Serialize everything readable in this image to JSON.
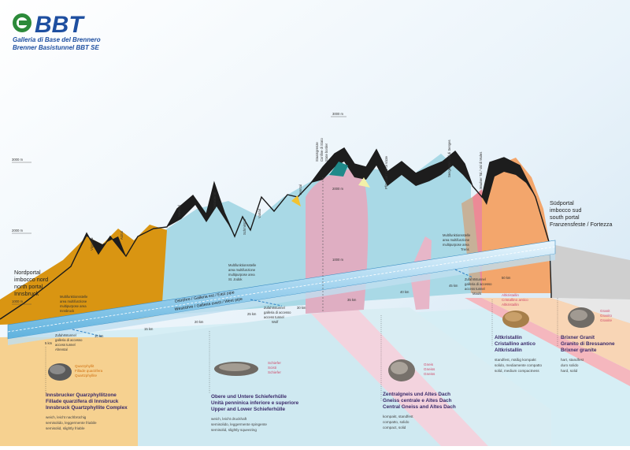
{
  "logo": {
    "brand": "BBT",
    "line1": "Galleria di Base del Brennero",
    "line2": "Brenner Basistunnel BBT SE"
  },
  "elevations": {
    "e1000": "1000 m",
    "e2000": "2000 m",
    "e3000": "3000 m",
    "e3000b": "3000 m",
    "e2000b": "2000 m",
    "e1000b": "1000 m"
  },
  "peaks": {
    "viggartal": "Viggartal",
    "arztal": "Arztal",
    "navistal": "Navistal",
    "padastertal": "Padastertal",
    "schmirntal": "Schmirntal",
    "valsertal": "Valstal",
    "venntal": "Venntal",
    "staatsgrenze": [
      "Staatsgrenze",
      "Confine di Stato",
      "State border"
    ],
    "pfitschtal": "Pfitschtal / Val di Vizze",
    "sengestal": "Sengestal / Val di Senges",
    "maulser": "Maulser Tal / Val di Mules"
  },
  "portals": {
    "north": [
      "Nordportal",
      "imbocco nord",
      "north portal",
      "Innsbruck"
    ],
    "south": [
      "Südportal",
      "imbocco sud",
      "south portal",
      "Franzensfeste / Fortezza"
    ]
  },
  "kilometers": [
    "5 km",
    "10 km",
    "15 km",
    "20 km",
    "25 km",
    "30 km",
    "35 km",
    "40 km",
    "45 km",
    "50 km"
  ],
  "tunnel_labels": {
    "east": "Oströhre / Galleria est / East pipe",
    "west": "Weströhre / Galleria ovest / West pipe"
  },
  "callouts": {
    "mfa_innsbruck": [
      "Multifunktionsstelle",
      "area multifunzione",
      "multipurpose area",
      "Innsbruck"
    ],
    "zugang_ahrental": [
      "Zufahrtstunnel",
      "galleria di accesso",
      "access tunnel",
      "Ahrental"
    ],
    "mfa_stjodok": [
      "Multifunktionsstelle",
      "area multifunzione",
      "multipurpose area",
      "St. Jodok"
    ],
    "zugang_wolf": [
      "Zufahrtstunnel",
      "galleria di accesso",
      "access tunnel",
      "Wolf"
    ],
    "mfa_trens": [
      "Multifunktionsstelle",
      "area multifunzione",
      "multipurpose area",
      "Trens"
    ],
    "zugang_mauls": [
      "Zufahrtstunnel",
      "galleria di accesso",
      "access tunnel",
      "Mauls"
    ]
  },
  "rocks": [
    {
      "sample": [
        "Quarzphyllit",
        "Fillade quarzifera",
        "Quartzphyllite"
      ],
      "title": [
        "Innsbrucker Quarzphyllitzone",
        "Fillade quarzifera di Innsbruck",
        "Innsbruck Quartzphyllite Complex"
      ],
      "props": [
        "weich, leicht nachbrüchig",
        "semisolido, leggermente friabile",
        "semisolid, slightly friable"
      ],
      "color": "#d9940f"
    },
    {
      "sample": [
        "Schiefer",
        "Scisti",
        "Schiefer"
      ],
      "title": [
        "Obere und Untere Schieferhülle",
        "Unità penninica inferiore e superiore",
        "Upper and Lower Schieferhülle"
      ],
      "props": [
        "weich, leicht druckhaft",
        "semisolido, leggermente spingente",
        "semisolid, slightly squeezing"
      ],
      "color": "#9fd3df"
    },
    {
      "sample": [
        "Gneis",
        "Gneiss",
        "Gneiss"
      ],
      "title": [
        "Zentralgneis und Altes Dach",
        "Gneiss centrale e Altes Dach",
        "Central Gneiss and Altes Dach"
      ],
      "props": [
        "kompakt, standfest",
        "compatto, solido",
        "compact, solid"
      ],
      "color": "#e3b7c6"
    },
    {
      "sample": [
        "Altkristallin",
        "Cristallino antico",
        "Altkristallin"
      ],
      "title": [
        "Altkristallin",
        "Cristallino antico",
        "Altkristallin"
      ],
      "props": [
        "standfest, mäßig kompakt",
        "solido, mediamente compatto",
        "solid, medium compactness"
      ],
      "color": "#f0a0a8"
    },
    {
      "sample": [
        "Granit",
        "Granito",
        "Granite"
      ],
      "title": [
        "Brixner Granit",
        "Granito di Bressanone",
        "Brixner granite"
      ],
      "props": [
        "hart, standfest",
        "duro solido",
        "hard, solid"
      ],
      "color": "#f6c79a"
    }
  ]
}
